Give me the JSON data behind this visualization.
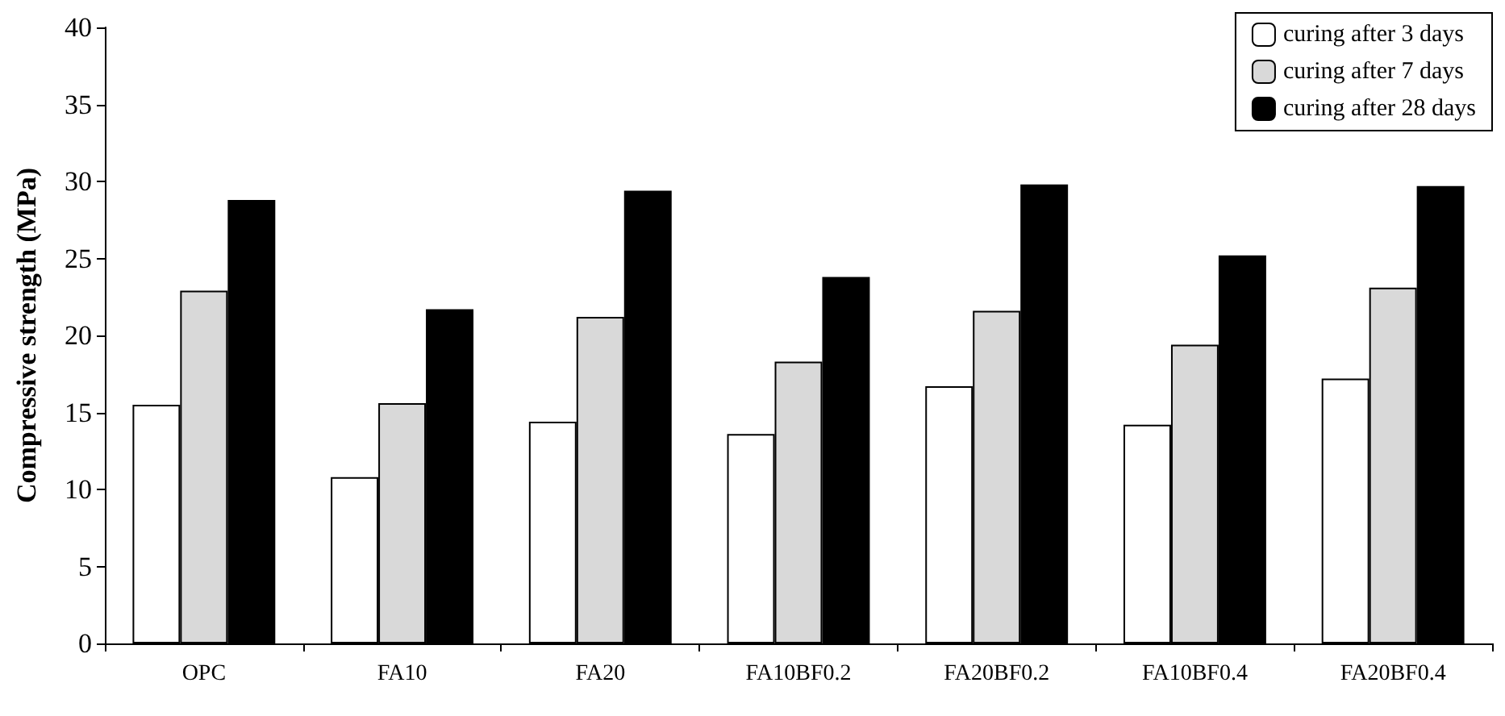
{
  "chart_data": {
    "type": "bar",
    "ylabel": "Compressive strength (MPa)",
    "categories": [
      "OPC",
      "FA10",
      "FA20",
      "FA10BF0.2",
      "FA20BF0.2",
      "FA10BF0.4",
      "FA20BF0.4"
    ],
    "series": [
      {
        "name": "curing after 3 days",
        "color": "#ffffff",
        "values": [
          15.5,
          10.8,
          14.4,
          13.6,
          16.7,
          14.2,
          17.2
        ]
      },
      {
        "name": "curing after 7 days",
        "color": "#d9d9d9",
        "values": [
          22.9,
          15.6,
          21.2,
          18.3,
          21.6,
          19.4,
          23.1
        ]
      },
      {
        "name": "curing after 28 days",
        "color": "#000000",
        "values": [
          28.8,
          21.7,
          29.4,
          23.8,
          29.8,
          25.2,
          29.7
        ]
      }
    ],
    "ylim": [
      0,
      40
    ],
    "yticks": [
      0,
      5,
      10,
      15,
      20,
      25,
      30,
      35,
      40
    ],
    "grid": false,
    "legend": "top right"
  }
}
